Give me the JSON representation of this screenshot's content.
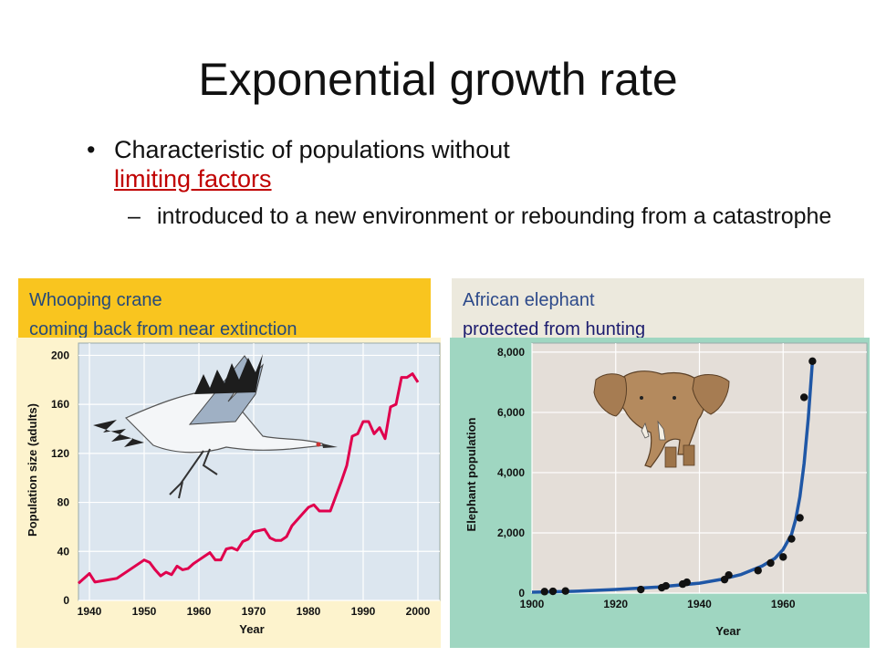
{
  "slide": {
    "title": "Exponential growth rate",
    "bullet1_text": "Characteristic of populations without",
    "bullet1_link": "limiting factors",
    "bullet2_text": "introduced to a new environment or rebounding from a catastrophe",
    "bullet_dot": "•",
    "bullet_dash": "–"
  },
  "captions": {
    "left_line1": "Whooping crane",
    "left_line2": "coming back from near extinction",
    "right_line1": "African elephant",
    "right_line2": "protected from hunting"
  },
  "colors": {
    "crane_line": "#e0004d",
    "elephant_curve": "#1f57a6",
    "crane_bg": "#dce6ef",
    "elephant_bg": "#e4ded8",
    "panel_bg": "#fdf3cd",
    "right_panel_bg": "#9fd6c1"
  },
  "chart_data": [
    {
      "type": "line",
      "title": "",
      "xlabel": "Year",
      "ylabel": "Population size (adults)",
      "xlim": [
        1938,
        2004
      ],
      "ylim": [
        0,
        210
      ],
      "xticks": [
        1940,
        1950,
        1960,
        1970,
        1980,
        1990,
        2000
      ],
      "yticks": [
        0,
        40,
        80,
        120,
        160,
        200
      ],
      "grid": true,
      "series": [
        {
          "x": [
            1938,
            1939,
            1940,
            1941,
            1945,
            1950,
            1951,
            1952,
            1953,
            1954,
            1955,
            1956,
            1957,
            1958,
            1959,
            1960,
            1961,
            1962,
            1963,
            1964,
            1965,
            1966,
            1967,
            1968,
            1969,
            1970,
            1971,
            1972,
            1973,
            1974,
            1975,
            1976,
            1977,
            1978,
            1979,
            1980,
            1981,
            1982,
            1983,
            1984,
            1985,
            1986,
            1987,
            1988,
            1989,
            1990,
            1991,
            1992,
            1993,
            1994,
            1995,
            1996,
            1997,
            1998,
            1999,
            2000
          ],
          "y": [
            14,
            18,
            22,
            15,
            18,
            33,
            31,
            25,
            20,
            23,
            21,
            28,
            25,
            26,
            30,
            33,
            36,
            39,
            33,
            33,
            42,
            43,
            41,
            48,
            50,
            56,
            57,
            58,
            51,
            49,
            49,
            52,
            61,
            66,
            71,
            76,
            78,
            73,
            73,
            73,
            85,
            97,
            110,
            134,
            136,
            146,
            146,
            136,
            141,
            132,
            158,
            160,
            182,
            182,
            185,
            178
          ]
        }
      ]
    },
    {
      "type": "scatter",
      "title": "",
      "xlabel": "Year",
      "ylabel": "Elephant population",
      "xlim": [
        1900,
        1980
      ],
      "ylim": [
        0,
        8300
      ],
      "xticks": [
        1900,
        1920,
        1940,
        1960
      ],
      "yticks": [
        0,
        2000,
        4000,
        6000,
        8000
      ],
      "ytick_labels": [
        "0",
        "2,000",
        "4,000",
        "6,000",
        "8,000"
      ],
      "grid": true,
      "series": [
        {
          "points_x": [
            1903,
            1905,
            1908,
            1926,
            1931,
            1932,
            1936,
            1937,
            1946,
            1947,
            1954,
            1957,
            1960,
            1962,
            1964,
            1965,
            1967
          ],
          "points_y": [
            50,
            60,
            70,
            120,
            180,
            240,
            300,
            360,
            450,
            600,
            750,
            1000,
            1200,
            1800,
            2500,
            6500,
            7700
          ],
          "curve_x": [
            1900,
            1910,
            1920,
            1930,
            1940,
            1945,
            1950,
            1955,
            1958,
            1960,
            1962,
            1963,
            1964,
            1965,
            1966,
            1967
          ],
          "curve_y": [
            30,
            60,
            120,
            200,
            330,
            450,
            620,
            900,
            1150,
            1450,
            1950,
            2450,
            3200,
            4300,
            5800,
            7700
          ]
        }
      ]
    }
  ]
}
